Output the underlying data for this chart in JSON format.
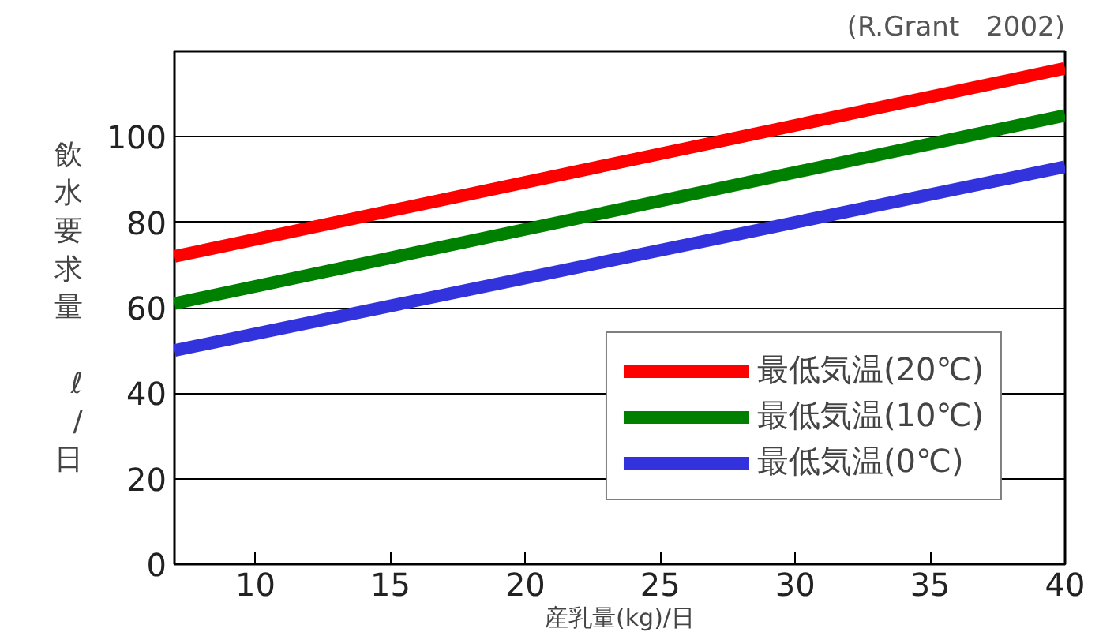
{
  "chart_data": {
    "type": "line",
    "annotations": [
      "(R.Grant　2002)"
    ],
    "xlabel": "産乳量(kg)/日",
    "ylabel": "飲水要求量 ℓ/日",
    "x": [
      7,
      40
    ],
    "series": [
      {
        "name": "最低気温(20℃)",
        "color": "#ff0000",
        "values": [
          72,
          116
        ]
      },
      {
        "name": "最低気温(10℃)",
        "color": "#008000",
        "values": [
          61,
          105
        ]
      },
      {
        "name": "最低気温(0℃)",
        "color": "#3333dd",
        "values": [
          50,
          93
        ]
      }
    ],
    "xlim": [
      7,
      40
    ],
    "ylim": [
      0,
      120
    ],
    "xticks": [
      10,
      15,
      20,
      25,
      30,
      35,
      40
    ],
    "yticks": [
      0,
      20,
      40,
      60,
      80,
      100
    ],
    "grid": "y",
    "legend": "bottom right",
    "line_style": "solid",
    "marker": "none"
  }
}
